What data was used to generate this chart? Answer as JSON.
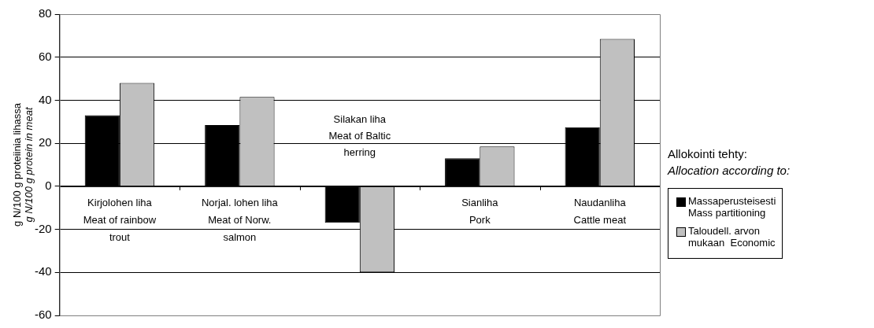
{
  "chart_data": {
    "type": "bar",
    "categories": [
      "Kirjolohen liha\nMeat of rainbow\ntrout",
      "Norjal. lohen liha\nMeat of Norw.\nsalmon",
      "Silakan liha\nMeat of Baltic\nherring",
      "Sianliha\nPork",
      "Naudanliha\nCattle meat"
    ],
    "series": [
      {
        "name": "Massaperusteisesti\nMass partitioning",
        "color": "#000000",
        "values": [
          33,
          28.5,
          -17,
          13,
          27.5
        ]
      },
      {
        "name": "Taloudell. arvon\nmukaan  Economic",
        "color": "#c0c0c0",
        "values": [
          48,
          41.5,
          -40,
          18.5,
          68.5
        ]
      }
    ],
    "ylabel": "g N/100 g proteiinia lihassa\ng N/100 g protein in meat",
    "legend_title": "Allokointi tehty:\nAllocation according to:",
    "ylim": [
      -60,
      80
    ],
    "yticks": [
      -60,
      -40,
      -20,
      0,
      20,
      40,
      60,
      80
    ],
    "grid": "y",
    "legend": "right"
  }
}
